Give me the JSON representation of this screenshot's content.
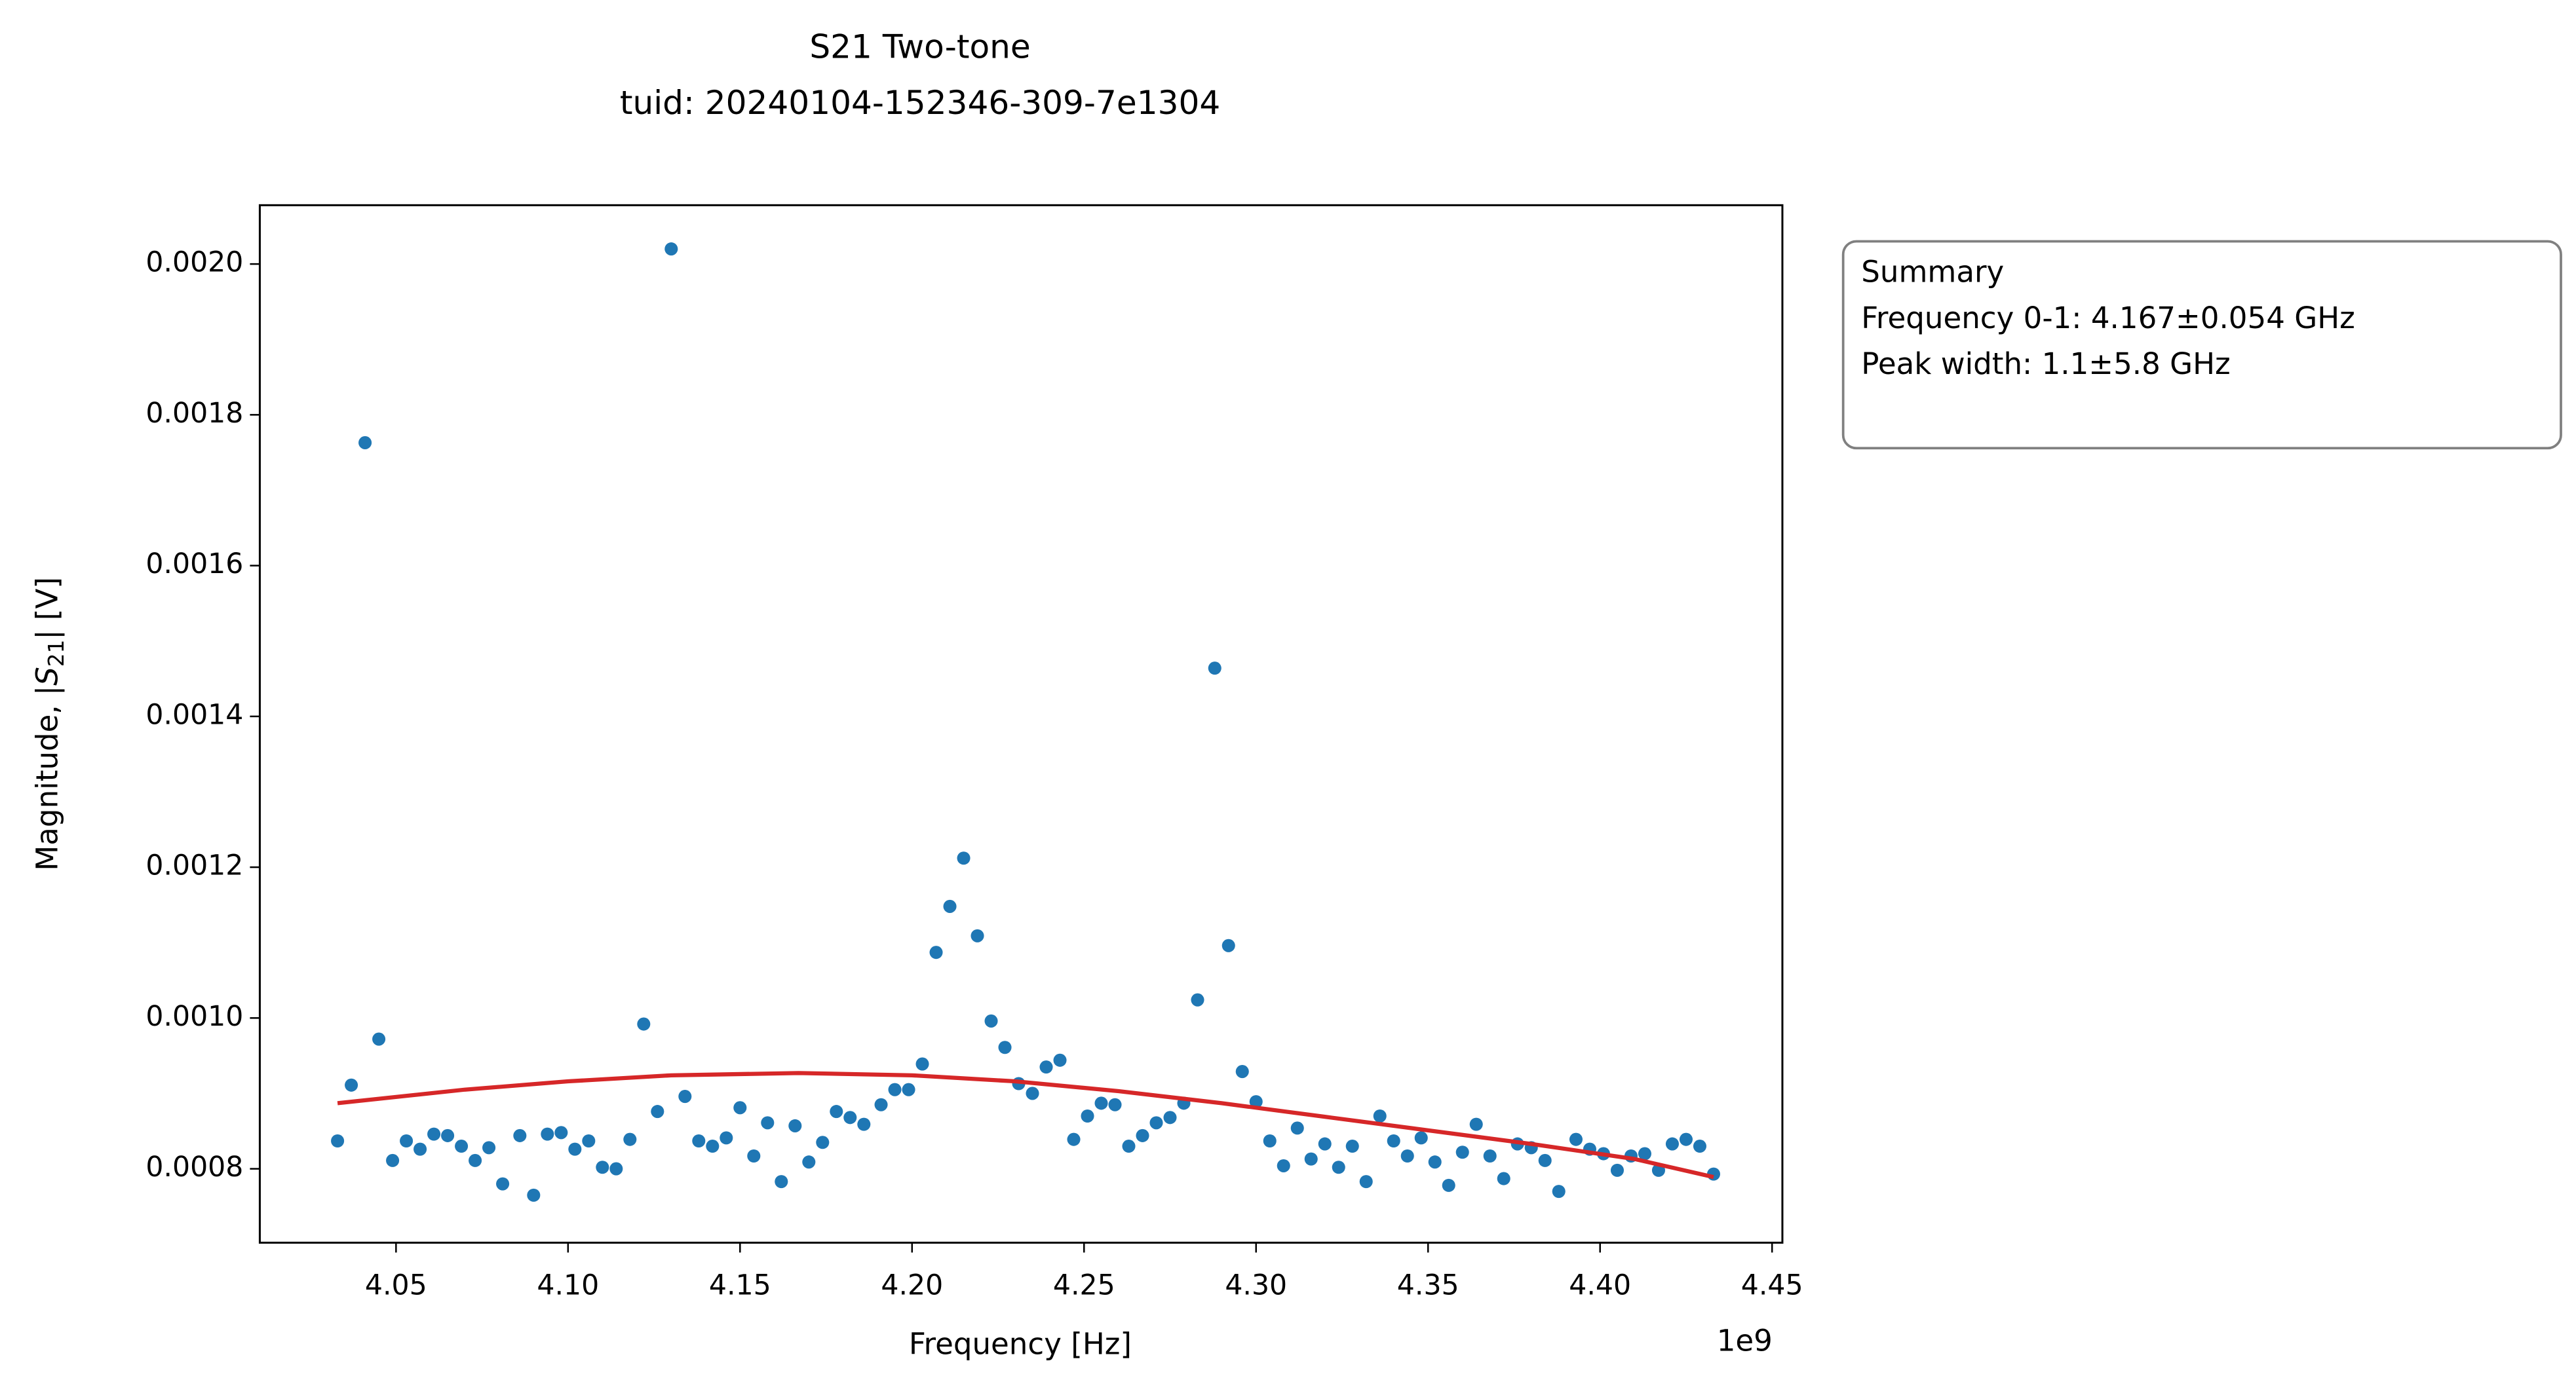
{
  "chart_data": {
    "type": "scatter",
    "title": [
      "S21 Two-tone",
      "tuid: 20240104-152346-309-7e1304"
    ],
    "xlabel": "Frequency [Hz]",
    "x_offset_label": "1e9",
    "ylabel": [
      "Magnitude, |",
      "S",
      "21",
      "| [V]"
    ],
    "xlim": [
      4.0104,
      4.453
    ],
    "ylim": [
      0.000702,
      0.002078
    ],
    "xticks": [
      4.05,
      {
        "value": 4.1,
        "label": "4.10"
      },
      4.15,
      {
        "value": 4.2,
        "label": "4.20"
      },
      4.25,
      {
        "value": 4.3,
        "label": "4.30"
      },
      4.35,
      {
        "value": 4.4,
        "label": "4.40"
      },
      4.45
    ],
    "yticks": [
      0.0008,
      {
        "value": 0.001,
        "label": "0.0010"
      },
      0.0012,
      0.0014,
      0.0016,
      0.0018,
      {
        "value": 0.002,
        "label": "0.0020"
      }
    ],
    "series": [
      {
        "kind": "points",
        "color": "#1f77b4",
        "x": [
          4.033,
          4.037,
          4.041,
          4.045,
          4.049,
          4.053,
          4.057,
          4.061,
          4.065,
          4.069,
          4.073,
          4.077,
          4.081,
          4.086,
          4.09,
          4.094,
          4.098,
          4.102,
          4.106,
          4.11,
          4.114,
          4.118,
          4.122,
          4.126,
          4.13,
          4.134,
          4.138,
          4.142,
          4.146,
          4.15,
          4.154,
          4.158,
          4.162,
          4.166,
          4.17,
          4.174,
          4.178,
          4.182,
          4.186,
          4.191,
          4.195,
          4.199,
          4.203,
          4.207,
          4.211,
          4.215,
          4.219,
          4.223,
          4.227,
          4.231,
          4.235,
          4.239,
          4.243,
          4.247,
          4.251,
          4.255,
          4.259,
          4.263,
          4.267,
          4.271,
          4.275,
          4.279,
          4.283,
          4.288,
          4.292,
          4.296,
          4.3,
          4.304,
          4.308,
          4.312,
          4.316,
          4.32,
          4.324,
          4.328,
          4.332,
          4.336,
          4.34,
          4.344,
          4.348,
          4.352,
          4.356,
          4.36,
          4.364,
          4.368,
          4.372,
          4.376,
          4.38,
          4.384,
          4.388,
          4.393,
          4.397,
          4.401,
          4.405,
          4.409,
          4.413,
          4.417,
          4.421,
          4.425,
          4.429,
          4.433
        ],
        "values": [
          0.000837,
          0.000911,
          0.001763,
          0.000972,
          0.000811,
          0.000837,
          0.000826,
          0.000846,
          0.000844,
          0.00083,
          0.000811,
          0.000828,
          0.00078,
          0.000844,
          0.000765,
          0.000846,
          0.000848,
          0.000826,
          0.000837,
          0.000802,
          0.0008,
          0.000839,
          0.000992,
          0.000876,
          0.00202,
          0.000896,
          0.000837,
          0.00083,
          0.000841,
          0.000881,
          0.000817,
          0.000861,
          0.000783,
          0.000857,
          0.000809,
          0.000835,
          0.000876,
          0.000868,
          0.000859,
          0.000885,
          0.000905,
          0.000905,
          0.000939,
          0.001087,
          0.001148,
          0.001212,
          0.001109,
          0.000996,
          0.000961,
          0.000913,
          0.0009,
          0.000935,
          0.000944,
          0.000839,
          0.00087,
          0.000887,
          0.000885,
          0.00083,
          0.000844,
          0.000861,
          0.000868,
          0.000887,
          0.001024,
          0.001464,
          0.001096,
          0.000929,
          0.000889,
          0.000837,
          0.000804,
          0.000854,
          0.000813,
          0.000833,
          0.000802,
          0.00083,
          0.000783,
          0.00087,
          0.000837,
          0.000817,
          0.000841,
          0.000809,
          0.000778,
          0.000822,
          0.000859,
          0.000817,
          0.000787,
          0.000833,
          0.000828,
          0.000811,
          0.00077,
          0.000839,
          0.000826,
          0.00082,
          0.000798,
          0.000817,
          0.00082,
          0.000798,
          0.000833,
          0.000839,
          0.00083,
          0.000793
        ]
      },
      {
        "kind": "line",
        "color": "#d62728",
        "x": [
          4.033,
          4.07,
          4.1,
          4.13,
          4.167,
          4.2,
          4.23,
          4.26,
          4.29,
          4.32,
          4.35,
          4.38,
          4.41,
          4.433
        ],
        "values": [
          0.000887,
          0.000905,
          0.000916,
          0.000924,
          0.000927,
          0.000924,
          0.000916,
          0.000903,
          0.000887,
          0.000869,
          0.000851,
          0.000833,
          0.000813,
          0.000789
        ]
      }
    ],
    "annotation": [
      "Summary",
      "Frequency 0-1: 4.167±0.054 GHz",
      "Peak width: 1.1±5.8 GHz"
    ]
  }
}
